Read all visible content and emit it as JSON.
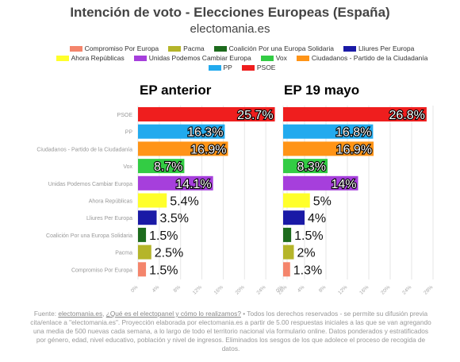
{
  "header": {
    "title": "Intención de voto - Elecciones Europeas (España)",
    "subtitle": "electomania.es"
  },
  "legend": [
    {
      "label": "Compromiso Por Europa",
      "color": "#f4856c"
    },
    {
      "label": "Pacma",
      "color": "#b5b52a"
    },
    {
      "label": "Coalición Por una Europa Solidaria",
      "color": "#1d6b1d"
    },
    {
      "label": "Lliures Per Europa",
      "color": "#1a1aa6"
    },
    {
      "label": "Ahora Repúblicas",
      "color": "#ffff2b"
    },
    {
      "label": "Unidas Podemos Cambiar Europa",
      "color": "#a63fdc"
    },
    {
      "label": "Vox",
      "color": "#33cc44"
    },
    {
      "label": "Ciudadanos - Partido de la Ciudadanía",
      "color": "#ff9417"
    },
    {
      "label": "PP",
      "color": "#22aaee"
    },
    {
      "label": "PSOE",
      "color": "#ef1e1e"
    }
  ],
  "chart_data": [
    {
      "type": "bar",
      "orientation": "horizontal",
      "title": "EP anterior",
      "categories": [
        "PSOE",
        "PP",
        "Ciudadanos - Partido de la Ciudadanía",
        "Vox",
        "Unidas Podemos Cambiar Europa",
        "Ahora Repúblicas",
        "Lliures Per Europa",
        "Coalición Por una Europa Solidaria",
        "Pacma",
        "Compromiso Por Europa"
      ],
      "values": [
        25.7,
        16.3,
        16.9,
        8.7,
        14.1,
        5.4,
        3.5,
        1.5,
        2.5,
        1.5
      ],
      "data_labels": [
        "25.7%",
        "16.3%",
        "16.9%",
        "8.7%",
        "14.1%",
        "5.4%",
        "3.5%",
        "1.5%",
        "2.5%",
        "1.5%"
      ],
      "colors": [
        "#ef1e1e",
        "#22aaee",
        "#ff9417",
        "#33cc44",
        "#a63fdc",
        "#ffff2b",
        "#1a1aa6",
        "#1d6b1d",
        "#b5b52a",
        "#f4856c"
      ],
      "xlim": [
        0,
        28
      ],
      "xticks": [
        "0%",
        "4%",
        "8%",
        "12%",
        "16%",
        "20%",
        "24%",
        "28%"
      ]
    },
    {
      "type": "bar",
      "orientation": "horizontal",
      "title": "EP 19 mayo",
      "categories": [
        "PSOE",
        "PP",
        "Ciudadanos - Partido de la Ciudadanía",
        "Vox",
        "Unidas Podemos Cambiar Europa",
        "Ahora Repúblicas",
        "Lliures Per Europa",
        "Coalición Por una Europa Solidaria",
        "Pacma",
        "Compromiso Por Europa"
      ],
      "values": [
        26.8,
        16.8,
        16.9,
        8.3,
        14,
        5,
        4,
        1.5,
        2,
        1.3
      ],
      "data_labels": [
        "26.8%",
        "16.8%",
        "16.9%",
        "8.3%",
        "14%",
        "5%",
        "4%",
        "1.5%",
        "2%",
        "1.3%"
      ],
      "colors": [
        "#ef1e1e",
        "#22aaee",
        "#ff9417",
        "#33cc44",
        "#a63fdc",
        "#ffff2b",
        "#1a1aa6",
        "#1d6b1d",
        "#b5b52a",
        "#f4856c"
      ],
      "xlim": [
        0,
        28
      ],
      "xticks": [
        "0%",
        "4%",
        "8%",
        "12%",
        "16%",
        "20%",
        "24%",
        "28%"
      ]
    }
  ],
  "footer": {
    "prefix": "Fuente: ",
    "link1": "electomania.es",
    "sep": ", ",
    "link2": "¿Qué es el electopanel y cómo lo realizamos?",
    "body": " • Todos los derechos reservados - se permite su difusión previa cita/enlace a \"electomania.es\". Proyección elaborada por electomania.es a partir de 5.00 respuestas iniciales a las que se van agregando una media de 500 nuevas cada semana, a lo largo de todo el territorio nacional vía formulario online. Datos ponderados y estratificados por género, edad, nivel educativo, población y nivel de ingresos. Eliminados los sesgos de los que adolece el proceso de recogida de datos."
  }
}
